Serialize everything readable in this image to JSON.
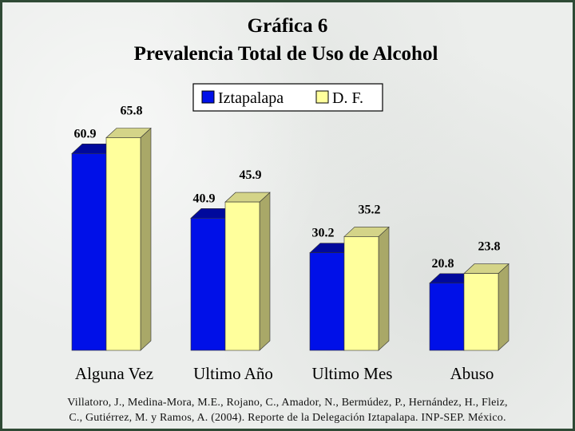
{
  "chart_data": {
    "type": "bar",
    "title": "Gráfica 6",
    "subtitle": "Prevalencia Total de Uso de Alcohol",
    "categories": [
      "Alguna Vez",
      "Ultimo Año",
      "Ultimo Mes",
      "Abuso"
    ],
    "series": [
      {
        "name": "Iztapalapa",
        "values": [
          60.9,
          40.9,
          30.2,
          20.8
        ],
        "color": "#0010e8"
      },
      {
        "name": "D. F.",
        "values": [
          65.8,
          45.9,
          35.2,
          23.8
        ],
        "color": "#ffff9c"
      }
    ],
    "ylim": [
      0,
      70
    ],
    "grid": false,
    "legend_position": "top-center",
    "three_d": true
  },
  "credit": {
    "line1": "Villatoro, J., Medina-Mora, M.E., Rojano, C., Amador, N., Bermúdez, P., Hernández, H., Fleiz,",
    "line2": "C., Gutiérrez, M. y Ramos, A. (2004). Reporte de la Delegación Iztapalapa. INP-SEP. México."
  }
}
